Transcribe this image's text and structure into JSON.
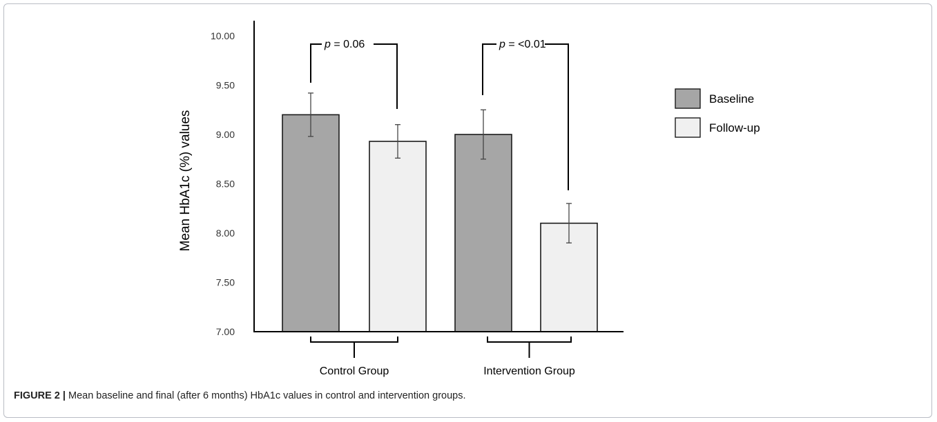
{
  "chart_data": {
    "type": "bar",
    "title": "",
    "ylabel": "Mean HbA1c (%) values",
    "xlabel": "",
    "ylim": [
      7.0,
      10.0
    ],
    "yticks": [
      "7.00",
      "7.50",
      "8.00",
      "8.50",
      "9.00",
      "9.50",
      "10.00"
    ],
    "groups": [
      "Control Group",
      "Intervention  Group"
    ],
    "series": [
      {
        "name": "Baseline",
        "color": "#a6a6a6",
        "values": [
          9.2,
          9.0
        ],
        "error": [
          0.22,
          0.25
        ]
      },
      {
        "name": "Follow-up",
        "color": "#f0f0f0",
        "values": [
          8.93,
          8.1
        ],
        "error": [
          0.17,
          0.2
        ]
      }
    ],
    "annotations": [
      {
        "p_italic": "p",
        "text": " = 0.06"
      },
      {
        "p_italic": "p",
        "text": " = <0.01"
      }
    ],
    "legend_position": "right",
    "grid": false
  },
  "caption": {
    "label": "FIGURE 2 |",
    "text": " Mean baseline and final (after 6 months) HbA1c values in control and intervention groups."
  }
}
